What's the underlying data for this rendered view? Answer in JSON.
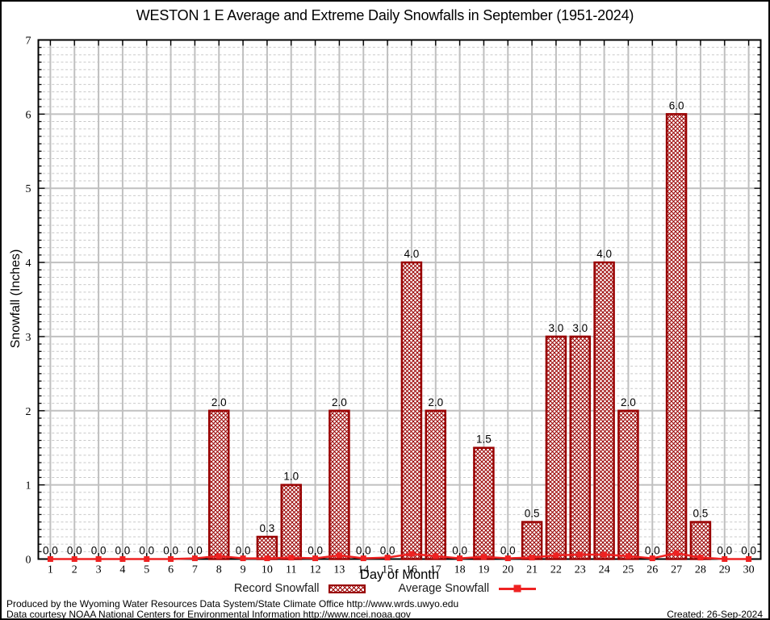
{
  "title": "WESTON 1 E Average and Extreme Daily Snowfalls in September (1951-2024)",
  "chart_data": {
    "type": "bar",
    "title": "WESTON 1 E Average and Extreme Daily Snowfalls in September (1951-2024)",
    "xlabel": "Day of Month",
    "ylabel": "Snowfall (Inches)",
    "x": [
      1,
      2,
      3,
      4,
      5,
      6,
      7,
      8,
      9,
      10,
      11,
      12,
      13,
      14,
      15,
      16,
      17,
      18,
      19,
      20,
      21,
      22,
      23,
      24,
      25,
      26,
      27,
      28,
      29,
      30
    ],
    "ylim": [
      0,
      7
    ],
    "yticks": [
      0,
      1,
      2,
      3,
      4,
      5,
      6,
      7
    ],
    "minor_tick_step": 0.1,
    "grid": true,
    "legend_position": "bottom",
    "bar_value_labels": true,
    "series": [
      {
        "name": "Record Snowfall",
        "type": "bar",
        "values": [
          0.0,
          0.0,
          0.0,
          0.0,
          0.0,
          0.0,
          0.0,
          2.0,
          0.0,
          0.3,
          1.0,
          0.0,
          2.0,
          0.0,
          0.0,
          4.0,
          2.0,
          0.0,
          1.5,
          0.0,
          0.5,
          3.0,
          3.0,
          4.0,
          2.0,
          0.0,
          6.0,
          0.5,
          0.0,
          0.0
        ]
      },
      {
        "name": "Average Snowfall",
        "type": "line",
        "values": [
          0,
          0,
          0,
          0,
          0,
          0,
          0.01,
          0.04,
          0.01,
          0.01,
          0.02,
          0.01,
          0.05,
          0.01,
          0.02,
          0.07,
          0.04,
          0.01,
          0.03,
          0.01,
          0.02,
          0.05,
          0.06,
          0.06,
          0.04,
          0.01,
          0.08,
          0.02,
          0,
          0
        ]
      }
    ],
    "colors": {
      "bar": "#990000",
      "line": "#ee2222",
      "grid_major": "#c0c0c0",
      "grid_minor": "#c9c9c9",
      "frame": "#000000",
      "label": "#000000"
    }
  },
  "footer": {
    "line1": "Produced by the Wyoming Water Resources Data System/State Climate Office http://www.wrds.uwyo.edu",
    "line2": "Data courtesy NOAA National Centers for Environmental Information http://www.ncei.noaa.gov",
    "created": "Created: 26-Sep-2024"
  }
}
